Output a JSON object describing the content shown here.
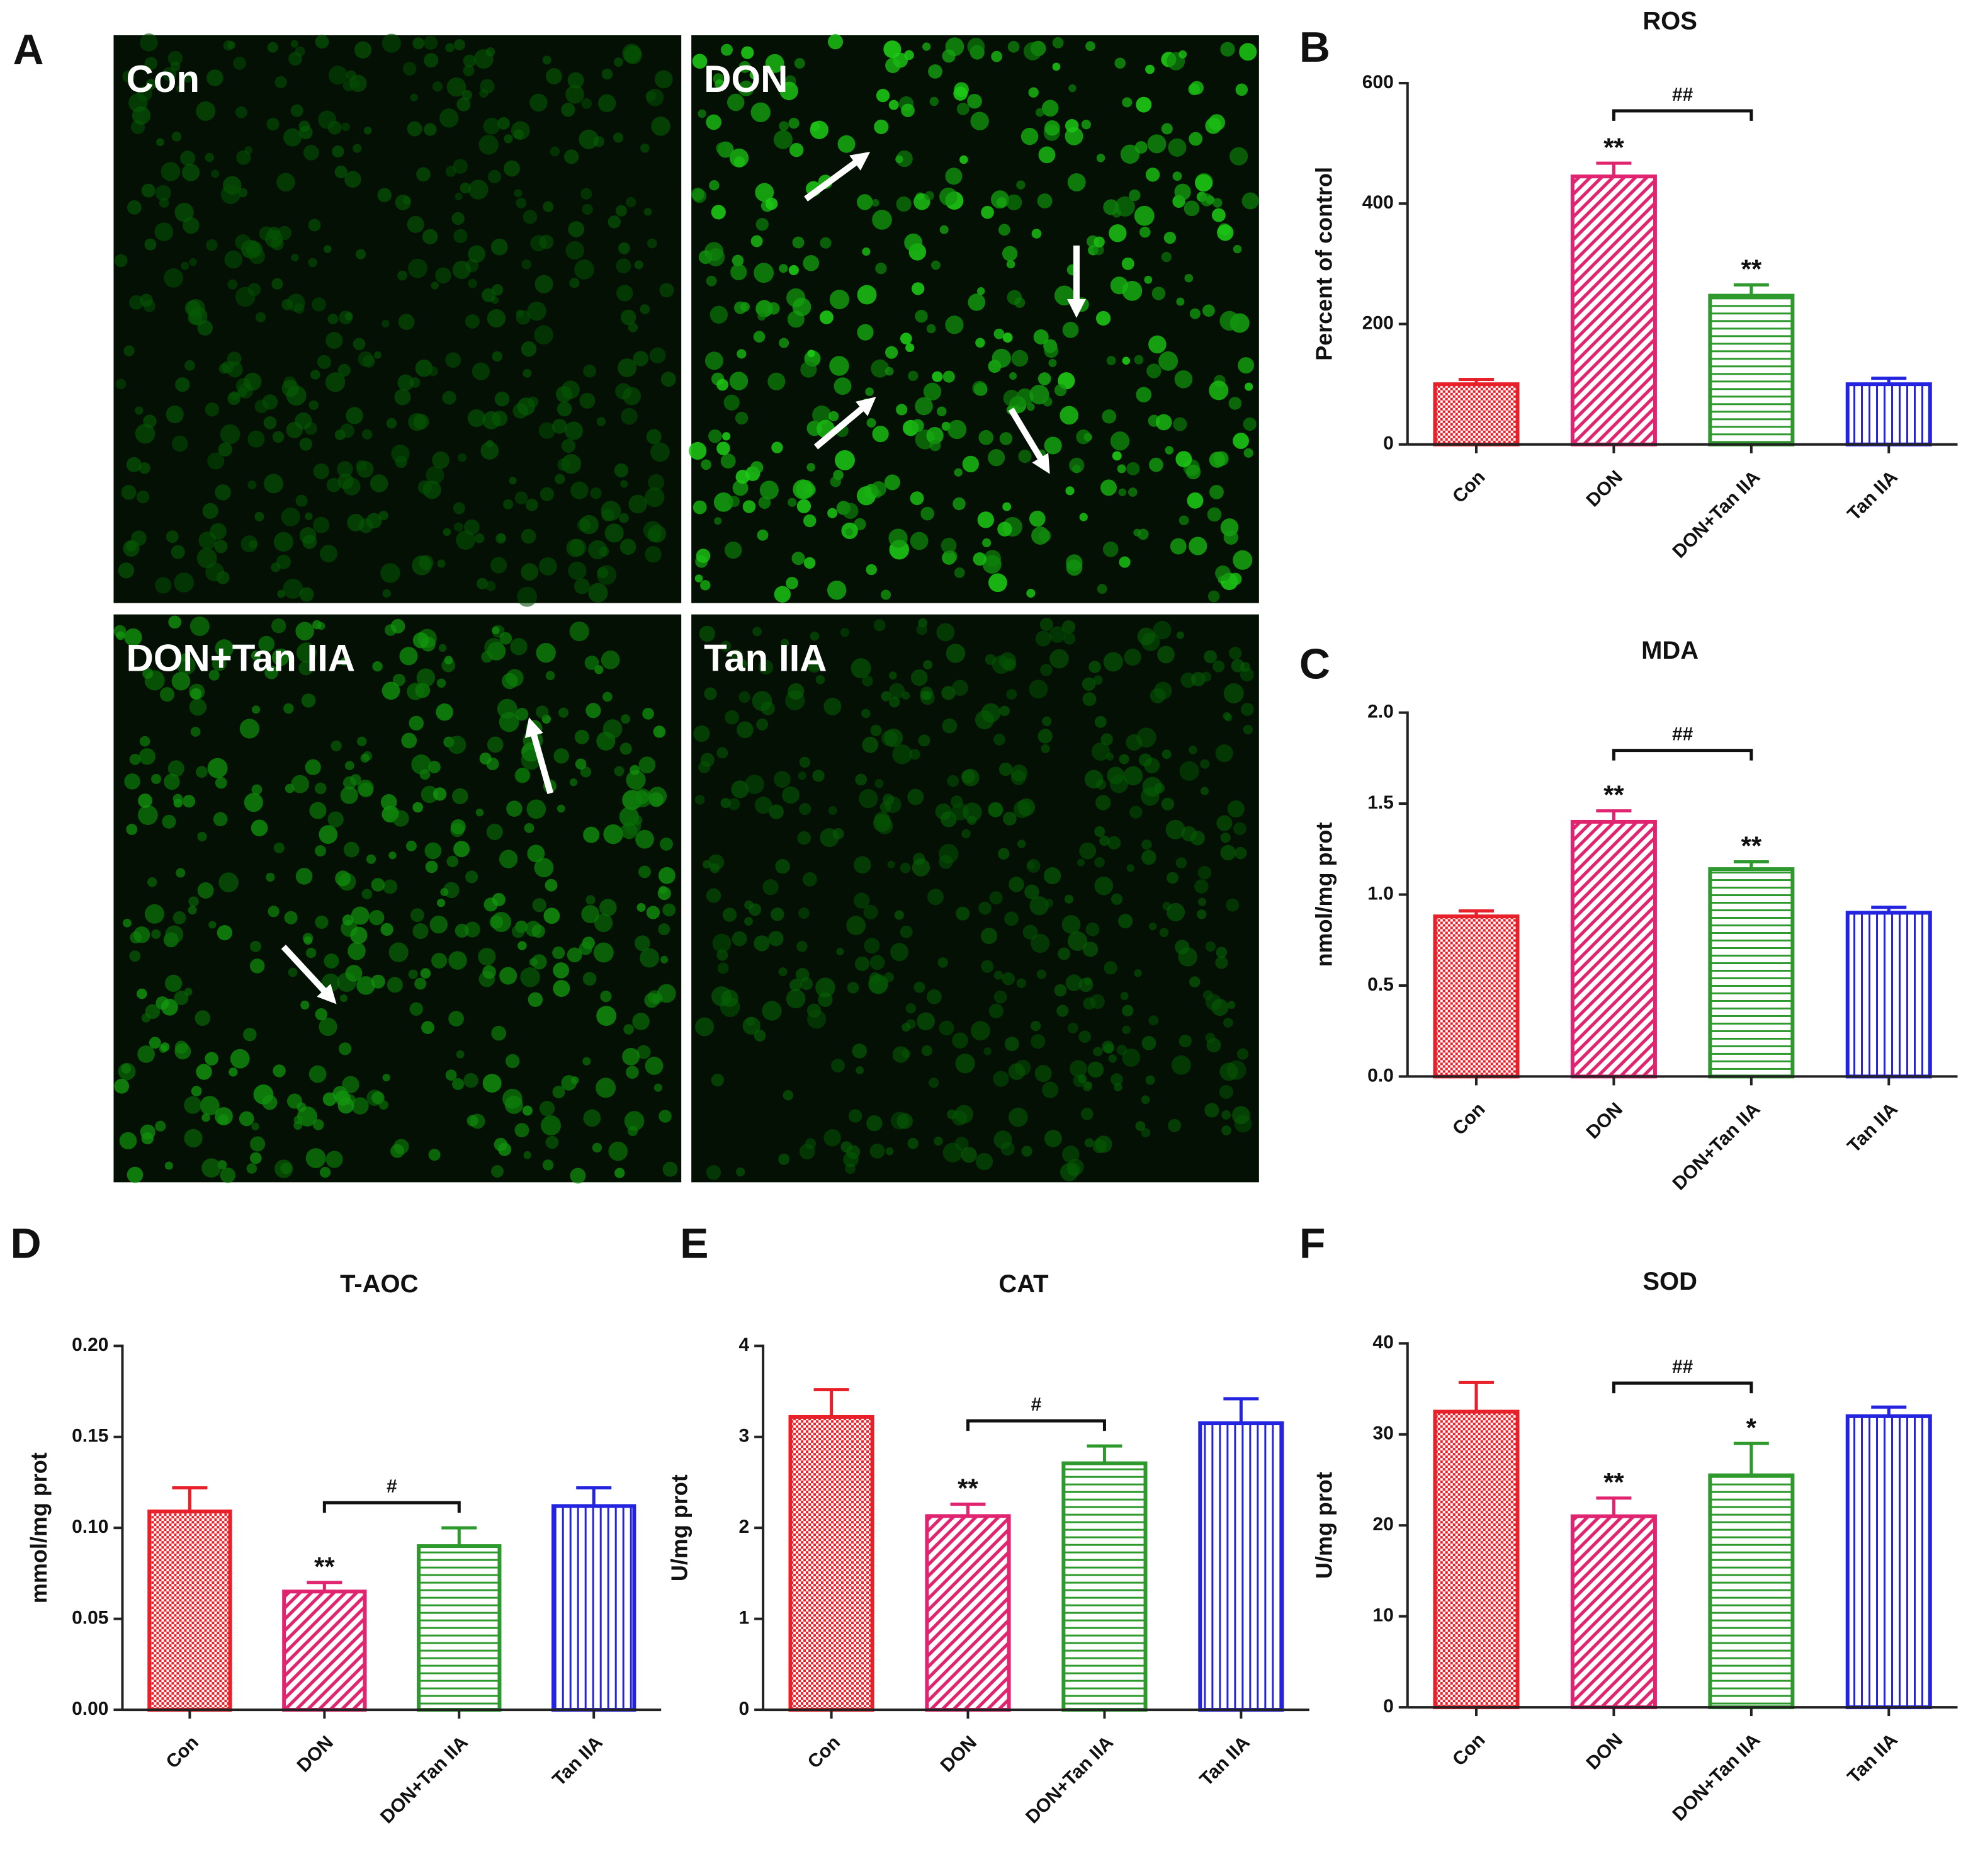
{
  "panel_a": {
    "label": "A",
    "images": [
      "Con",
      "DON",
      "DON+Tan IIA",
      "Tan IIA"
    ]
  },
  "chart_data": [
    {
      "type": "bar",
      "panel": "B",
      "title": "ROS",
      "y_label": "Percent of control",
      "categories": [
        "Con",
        "DON",
        "DON+Tan IIA",
        "Tan IIA"
      ],
      "values": [
        100,
        445,
        247,
        100
      ],
      "errors": [
        8,
        22,
        18,
        10
      ],
      "colors": [
        "#e8202a",
        "#e0246f",
        "#2e9a2e",
        "#2424e0"
      ],
      "patterns": [
        "dots",
        "diagonal",
        "horizontal",
        "vertical"
      ],
      "significance": [
        null,
        "**",
        "**",
        null
      ],
      "bracket": {
        "between": [
          1,
          2
        ],
        "label": "##"
      },
      "ylim": [
        0,
        600
      ],
      "yticks": [
        0,
        200,
        400,
        600
      ]
    },
    {
      "type": "bar",
      "panel": "C",
      "title": "MDA",
      "y_label": "nmol/mg prot",
      "categories": [
        "Con",
        "DON",
        "DON+Tan IIA",
        "Tan IIA"
      ],
      "values": [
        0.88,
        1.4,
        1.14,
        0.9
      ],
      "errors": [
        0.03,
        0.06,
        0.04,
        0.03
      ],
      "colors": [
        "#e8202a",
        "#e0246f",
        "#2e9a2e",
        "#2424e0"
      ],
      "patterns": [
        "dots",
        "diagonal",
        "horizontal",
        "vertical"
      ],
      "significance": [
        null,
        "**",
        "**",
        null
      ],
      "bracket": {
        "between": [
          1,
          2
        ],
        "label": "##"
      },
      "ylim": [
        0,
        2
      ],
      "yticks": [
        {
          "value": 0,
          "label": "0.0"
        },
        0.5,
        {
          "value": 1,
          "label": "1.0"
        },
        1.5,
        {
          "value": 2,
          "label": "2.0"
        }
      ]
    },
    {
      "type": "bar",
      "panel": "D",
      "title": "T-AOC",
      "y_label": "mmol/mg prot",
      "categories": [
        "Con",
        "DON",
        "DON+Tan IIA",
        "Tan IIA"
      ],
      "values": [
        0.109,
        0.065,
        0.09,
        0.112
      ],
      "errors": [
        0.013,
        0.005,
        0.01,
        0.01
      ],
      "colors": [
        "#e8202a",
        "#e0246f",
        "#2e9a2e",
        "#2424e0"
      ],
      "patterns": [
        "dots",
        "diagonal",
        "horizontal",
        "vertical"
      ],
      "significance": [
        null,
        "**",
        null,
        null
      ],
      "bracket": {
        "between": [
          1,
          2
        ],
        "label": "#"
      },
      "ylim": [
        0,
        0.2
      ],
      "yticks": [
        {
          "value": 0,
          "label": "0.00"
        },
        0.05,
        {
          "value": 0.1,
          "label": "0.10"
        },
        0.15,
        {
          "value": 0.2,
          "label": "0.20"
        }
      ]
    },
    {
      "type": "bar",
      "panel": "E",
      "title": "CAT",
      "y_label": "U/mg prot",
      "categories": [
        "Con",
        "DON",
        "DON+Tan IIA",
        "Tan IIA"
      ],
      "values": [
        3.22,
        2.13,
        2.71,
        3.15
      ],
      "errors": [
        0.3,
        0.13,
        0.19,
        0.27
      ],
      "colors": [
        "#e8202a",
        "#e0246f",
        "#2e9a2e",
        "#2424e0"
      ],
      "patterns": [
        "dots",
        "diagonal",
        "horizontal",
        "vertical"
      ],
      "significance": [
        null,
        "**",
        null,
        null
      ],
      "bracket": {
        "between": [
          1,
          2
        ],
        "label": "#"
      },
      "ylim": [
        0,
        4
      ],
      "yticks": [
        0,
        1,
        2,
        3,
        4
      ]
    },
    {
      "type": "bar",
      "panel": "F",
      "title": "SOD",
      "y_label": "U/mg prot",
      "categories": [
        "Con",
        "DON",
        "DON+Tan IIA",
        "Tan IIA"
      ],
      "values": [
        32.5,
        21,
        25.5,
        32
      ],
      "errors": [
        3.2,
        2,
        3.5,
        1
      ],
      "colors": [
        "#e8202a",
        "#e0246f",
        "#2e9a2e",
        "#2424e0"
      ],
      "patterns": [
        "dots",
        "diagonal",
        "horizontal",
        "vertical"
      ],
      "significance": [
        null,
        "**",
        "*",
        null
      ],
      "bracket": {
        "between": [
          1,
          2
        ],
        "label": "##"
      },
      "ylim": [
        0,
        40
      ],
      "yticks": [
        0,
        10,
        20,
        30,
        40
      ]
    }
  ]
}
